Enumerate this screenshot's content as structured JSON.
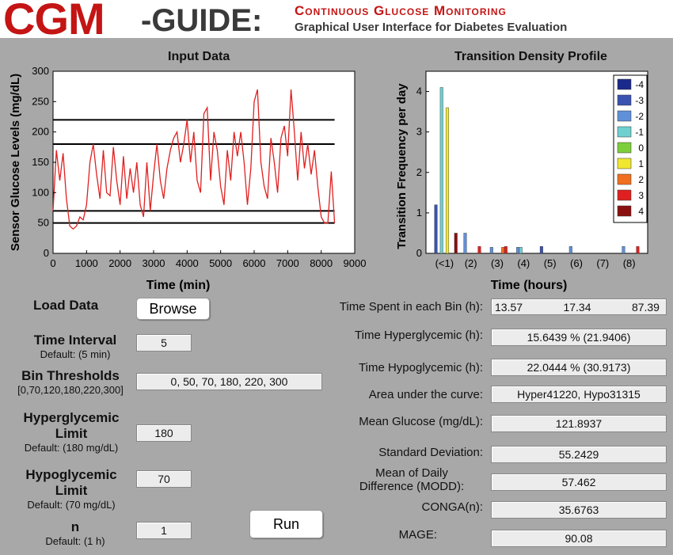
{
  "header": {
    "logo_cgm": "CGM",
    "logo_guide": "-GUIDE:",
    "line1": "Continuous Glucose Monitoring",
    "line2": "Graphical User Interface for Diabetes Evaluation"
  },
  "input_chart": {
    "title": "Input Data",
    "xlabel": "Time (min)",
    "ylabel": "Sensor Glucose Levels (mg/dL)",
    "xticks": [
      "0",
      "1000",
      "2000",
      "3000",
      "4000",
      "5000",
      "6000",
      "7000",
      "8000",
      "9000"
    ],
    "yticks": [
      "0",
      "50",
      "100",
      "150",
      "200",
      "250",
      "300"
    ],
    "line_color": "#e02020"
  },
  "density_chart": {
    "title": "Transition Density Profile",
    "xlabel": "Time (hours)",
    "ylabel": "Transition Frequency per day",
    "xticks": [
      "(<1)",
      "(2)",
      "(3)",
      "(4)",
      "(5)",
      "(6)",
      "(7)",
      "(8)"
    ],
    "yticks": [
      "0",
      "1",
      "2",
      "3",
      "4"
    ],
    "legend": [
      "-4",
      "-3",
      "-2",
      "-1",
      "0",
      "1",
      "2",
      "3",
      "4"
    ],
    "legend_colors": [
      "#1a2a8c",
      "#3a52b0",
      "#6090d8",
      "#70d0d0",
      "#7ccf3a",
      "#f0e830",
      "#f07020",
      "#e02020",
      "#8a1010"
    ]
  },
  "chart_data": [
    {
      "type": "line",
      "title": "Input Data",
      "xlabel": "Time (min)",
      "ylabel": "Sensor Glucose Levels (mg/dL)",
      "xlim": [
        0,
        9000
      ],
      "ylim": [
        0,
        300
      ],
      "reference_lines": [
        220,
        180,
        70,
        50
      ],
      "x": [
        0,
        100,
        200,
        300,
        400,
        500,
        600,
        700,
        800,
        900,
        1000,
        1100,
        1200,
        1300,
        1400,
        1500,
        1600,
        1700,
        1800,
        1900,
        2000,
        2100,
        2200,
        2300,
        2400,
        2500,
        2600,
        2700,
        2800,
        2900,
        3000,
        3100,
        3200,
        3300,
        3400,
        3500,
        3600,
        3700,
        3800,
        3900,
        4000,
        4100,
        4200,
        4300,
        4400,
        4500,
        4600,
        4700,
        4800,
        4900,
        5000,
        5100,
        5200,
        5300,
        5400,
        5500,
        5600,
        5700,
        5800,
        5900,
        6000,
        6100,
        6200,
        6300,
        6400,
        6500,
        6600,
        6700,
        6800,
        6900,
        7000,
        7100,
        7200,
        7300,
        7400,
        7500,
        7600,
        7700,
        7800,
        7900,
        8000,
        8100,
        8200,
        8300,
        8400
      ],
      "y": [
        70,
        170,
        120,
        165,
        90,
        45,
        40,
        45,
        60,
        55,
        80,
        150,
        180,
        130,
        90,
        170,
        100,
        95,
        175,
        120,
        80,
        160,
        90,
        140,
        100,
        150,
        80,
        60,
        150,
        70,
        130,
        180,
        120,
        90,
        140,
        170,
        190,
        200,
        150,
        180,
        220,
        150,
        200,
        120,
        100,
        230,
        240,
        120,
        200,
        170,
        110,
        80,
        170,
        120,
        200,
        160,
        200,
        150,
        80,
        140,
        250,
        270,
        150,
        110,
        90,
        190,
        150,
        100,
        190,
        210,
        160,
        270,
        200,
        120,
        200,
        140,
        180,
        130,
        170,
        110,
        60,
        50,
        50,
        135,
        50
      ]
    },
    {
      "type": "bar",
      "title": "Transition Density Profile",
      "xlabel": "Time (hours)",
      "ylabel": "Transition Frequency per day",
      "categories": [
        "(<1)",
        "(2)",
        "(3)",
        "(4)",
        "(5)",
        "(6)",
        "(7)",
        "(8)"
      ],
      "ylim": [
        0,
        4.5
      ],
      "series": [
        {
          "name": "-4",
          "values": [
            0,
            0,
            0,
            0,
            0,
            0,
            0,
            0
          ]
        },
        {
          "name": "-3",
          "values": [
            1.2,
            0,
            0,
            0,
            0.17,
            0,
            0,
            0
          ]
        },
        {
          "name": "-2",
          "values": [
            0,
            0.5,
            0.15,
            0.15,
            0,
            0.17,
            0,
            0.17
          ]
        },
        {
          "name": "-1",
          "values": [
            4.1,
            0,
            0,
            0.15,
            0,
            0,
            0,
            0
          ]
        },
        {
          "name": "0",
          "values": [
            0,
            0,
            0,
            0,
            0,
            0,
            0,
            0
          ]
        },
        {
          "name": "1",
          "values": [
            3.6,
            0,
            0,
            0,
            0,
            0,
            0,
            0
          ]
        },
        {
          "name": "2",
          "values": [
            0,
            0,
            0.15,
            0,
            0,
            0,
            0,
            0
          ]
        },
        {
          "name": "3",
          "values": [
            0,
            0.17,
            0.17,
            0,
            0,
            0,
            0,
            0.17
          ]
        },
        {
          "name": "4",
          "values": [
            0.5,
            0,
            0,
            0,
            0,
            0,
            0,
            0
          ]
        }
      ]
    }
  ],
  "left_form": {
    "load_data_label": "Load Data",
    "browse_label": "Browse",
    "time_interval_label": "Time Interval",
    "time_interval_default": "Default: (5 min)",
    "time_interval_value": "5",
    "bin_thresholds_label": "Bin Thresholds",
    "bin_thresholds_default": "[0,70,120,180,220,300]",
    "bin_thresholds_value": "0, 50, 70, 180, 220, 300",
    "hyper_label_1": "Hyperglycemic",
    "hyper_label_2": "Limit",
    "hyper_default": "Default: (180 mg/dL)",
    "hyper_value": "180",
    "hypo_label_1": "Hypoglycemic",
    "hypo_label_2": "Limit",
    "hypo_default": "Default: (70 mg/dL)",
    "hypo_value": "70",
    "n_label": "n",
    "n_default": "Default: (1 h)",
    "n_value": "1",
    "run_label": "Run"
  },
  "results": {
    "time_bins_label": "Time Spent in each Bin (h):",
    "time_bins_values": [
      "13.57",
      "17.34",
      "87.39"
    ],
    "hyper_label": "Time Hyperglycemic (h):",
    "hyper_value": "15.6439 % (21.9406)",
    "hypo_label": "Time Hypoglycemic (h):",
    "hypo_value": "22.0444 % (30.9173)",
    "auc_label": "Area under the curve:",
    "auc_value": "Hyper41220, Hypo31315",
    "mean_label": "Mean Glucose (mg/dL):",
    "mean_value": "121.8937",
    "sd_label": "Standard Deviation:",
    "sd_value": "55.2429",
    "modd_label_1": "Mean of Daily",
    "modd_label_2": "Difference (MODD):",
    "modd_value": "57.462",
    "conga_label": "CONGA(n):",
    "conga_value": "35.6763",
    "mage_label": "MAGE:",
    "mage_value": "90.08"
  }
}
